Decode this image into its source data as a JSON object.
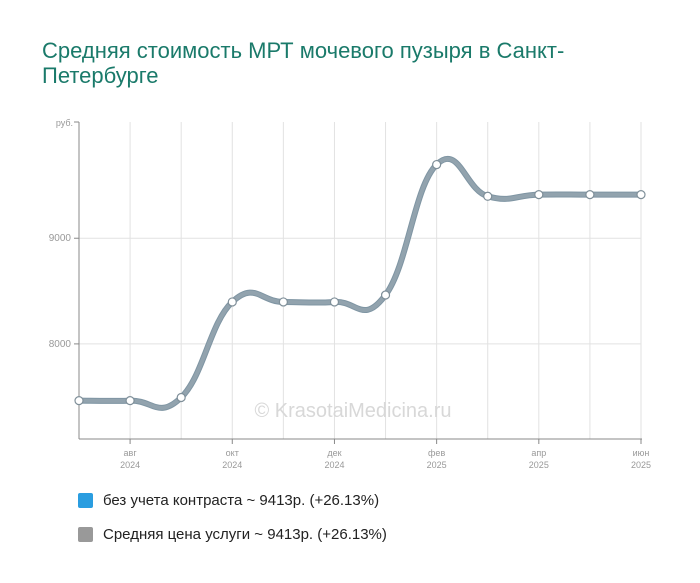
{
  "title": "Средняя стоимость МРТ мочевого пузыря в Санкт-Петербурге",
  "watermark": "© KrasotaiMedicina.ru",
  "chart_data": {
    "type": "line",
    "ylabel": "руб.",
    "ylim": [
      7100,
      10100
    ],
    "yticks": [
      {
        "value": 8000,
        "label": "8000"
      },
      {
        "value": 9000,
        "label": "9000"
      }
    ],
    "x": [
      "2024-07",
      "2024-08",
      "2024-09",
      "2024-10",
      "2024-11",
      "2024-12",
      "2025-01",
      "2025-02",
      "2025-03",
      "2025-04",
      "2025-05",
      "2025-06"
    ],
    "xticks": [
      {
        "index": 1,
        "month": "авг",
        "year": "2024"
      },
      {
        "index": 3,
        "month": "окт",
        "year": "2024"
      },
      {
        "index": 5,
        "month": "дек",
        "year": "2024"
      },
      {
        "index": 7,
        "month": "фев",
        "year": "2025"
      },
      {
        "index": 9,
        "month": "апр",
        "year": "2025"
      },
      {
        "index": 11,
        "month": "июн",
        "year": "2025"
      }
    ],
    "grid": true,
    "series": [
      {
        "name": "без учета контраста",
        "color": "#2a9de0",
        "values": [
          7463,
          7463,
          7493,
          8397,
          8397,
          8397,
          8463,
          9697,
          9397,
          9413,
          9413,
          9413
        ]
      },
      {
        "name": "Средняя цена услуги",
        "color": "#8e9ea8",
        "values": [
          7463,
          7463,
          7493,
          8397,
          8397,
          8397,
          8463,
          9697,
          9397,
          9413,
          9413,
          9413
        ]
      }
    ]
  },
  "legend": [
    {
      "label": "без учета контраста ~ 9413р. (+26.13%)",
      "color": "#2a9de0"
    },
    {
      "label": "Средняя цена услуги ~ 9413р. (+26.13%)",
      "color": "#999999"
    }
  ]
}
